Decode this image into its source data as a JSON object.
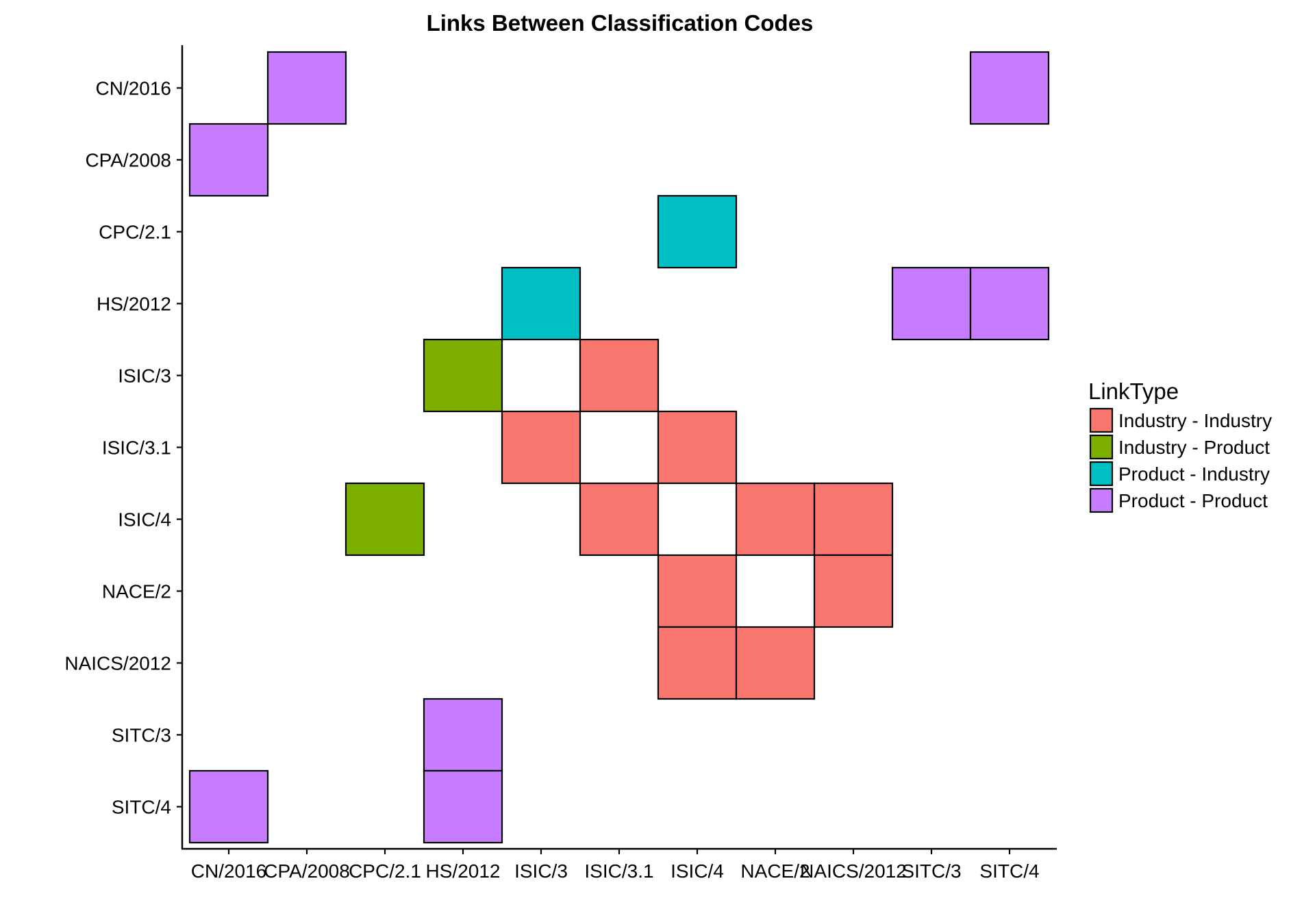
{
  "chart_data": {
    "type": "heatmap",
    "title": "Links Between Classification Codes",
    "xlabel": "",
    "ylabel": "",
    "x_categories": [
      "CN/2016",
      "CPA/2008",
      "CPC/2.1",
      "HS/2012",
      "ISIC/3",
      "ISIC/3.1",
      "ISIC/4",
      "NACE/2",
      "NAICS/2012",
      "SITC/3",
      "SITC/4"
    ],
    "y_categories": [
      "CN/2016",
      "CPA/2008",
      "CPC/2.1",
      "HS/2012",
      "ISIC/3",
      "ISIC/3.1",
      "ISIC/4",
      "NACE/2",
      "NAICS/2012",
      "SITC/3",
      "SITC/4"
    ],
    "grid": false,
    "legend": {
      "title": "LinkType",
      "position": "right",
      "entries": [
        {
          "label": "Industry - Industry",
          "color": "#F8766D"
        },
        {
          "label": "Industry - Product",
          "color": "#7CAE00"
        },
        {
          "label": "Product - Industry",
          "color": "#00BFC4"
        },
        {
          "label": "Product - Product",
          "color": "#C77CFF"
        }
      ]
    },
    "cells": [
      {
        "x": "CPA/2008",
        "y": "CN/2016",
        "type": "Product - Product"
      },
      {
        "x": "SITC/4",
        "y": "CN/2016",
        "type": "Product - Product"
      },
      {
        "x": "CN/2016",
        "y": "CPA/2008",
        "type": "Product - Product"
      },
      {
        "x": "ISIC/4",
        "y": "CPC/2.1",
        "type": "Product - Industry"
      },
      {
        "x": "ISIC/3",
        "y": "HS/2012",
        "type": "Product - Industry"
      },
      {
        "x": "SITC/3",
        "y": "HS/2012",
        "type": "Product - Product"
      },
      {
        "x": "SITC/4",
        "y": "HS/2012",
        "type": "Product - Product"
      },
      {
        "x": "HS/2012",
        "y": "ISIC/3",
        "type": "Industry - Product"
      },
      {
        "x": "ISIC/3.1",
        "y": "ISIC/3",
        "type": "Industry - Industry"
      },
      {
        "x": "ISIC/3",
        "y": "ISIC/3.1",
        "type": "Industry - Industry"
      },
      {
        "x": "ISIC/4",
        "y": "ISIC/3.1",
        "type": "Industry - Industry"
      },
      {
        "x": "CPC/2.1",
        "y": "ISIC/4",
        "type": "Industry - Product"
      },
      {
        "x": "ISIC/3.1",
        "y": "ISIC/4",
        "type": "Industry - Industry"
      },
      {
        "x": "NACE/2",
        "y": "ISIC/4",
        "type": "Industry - Industry"
      },
      {
        "x": "NAICS/2012",
        "y": "ISIC/4",
        "type": "Industry - Industry"
      },
      {
        "x": "ISIC/4",
        "y": "NACE/2",
        "type": "Industry - Industry"
      },
      {
        "x": "NAICS/2012",
        "y": "NACE/2",
        "type": "Industry - Industry"
      },
      {
        "x": "ISIC/4",
        "y": "NAICS/2012",
        "type": "Industry - Industry"
      },
      {
        "x": "NACE/2",
        "y": "NAICS/2012",
        "type": "Industry - Industry"
      },
      {
        "x": "HS/2012",
        "y": "SITC/3",
        "type": "Product - Product"
      },
      {
        "x": "CN/2016",
        "y": "SITC/4",
        "type": "Product - Product"
      },
      {
        "x": "HS/2012",
        "y": "SITC/4",
        "type": "Product - Product"
      }
    ]
  }
}
